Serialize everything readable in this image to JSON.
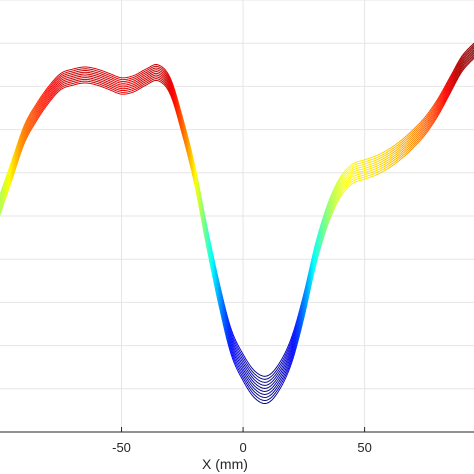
{
  "chart_data": {
    "type": "line",
    "title": "",
    "xlabel": "X (mm)",
    "ylabel": "",
    "xlim": [
      -100,
      95
    ],
    "ylim": [
      0,
      10
    ],
    "grid": true,
    "legend": "none",
    "x_ticks": [
      -50,
      0,
      50
    ],
    "x_tick_labels": [
      "-50",
      "0",
      "50"
    ],
    "y_grid_values": [
      1,
      2,
      3,
      4,
      5,
      6,
      7,
      8,
      9,
      10
    ],
    "curve_count": 10,
    "colormap": "jet",
    "series": [
      {
        "x": [
          -100,
          -95,
          -90,
          -85,
          -80,
          -75,
          -70,
          -65,
          -60,
          -55,
          -50,
          -45,
          -40,
          -35,
          -30,
          -25,
          -20,
          -15,
          -10,
          -5,
          0,
          5,
          10,
          15,
          20,
          25,
          30,
          35,
          40,
          45,
          50,
          55,
          60,
          65,
          70,
          75,
          80,
          85,
          90,
          95
        ],
        "y": [
          5.5,
          6.3,
          7.1,
          7.6,
          8.0,
          8.3,
          8.4,
          8.45,
          8.4,
          8.3,
          8.2,
          8.25,
          8.4,
          8.5,
          8.2,
          7.3,
          6.2,
          4.8,
          3.5,
          2.4,
          1.8,
          1.4,
          1.3,
          1.6,
          2.2,
          3.2,
          4.4,
          5.3,
          5.9,
          6.2,
          6.3,
          6.4,
          6.55,
          6.75,
          7.0,
          7.3,
          7.7,
          8.2,
          8.7,
          9.0
        ],
        "offset_range": [
          0,
          -0.35
        ]
      }
    ]
  }
}
